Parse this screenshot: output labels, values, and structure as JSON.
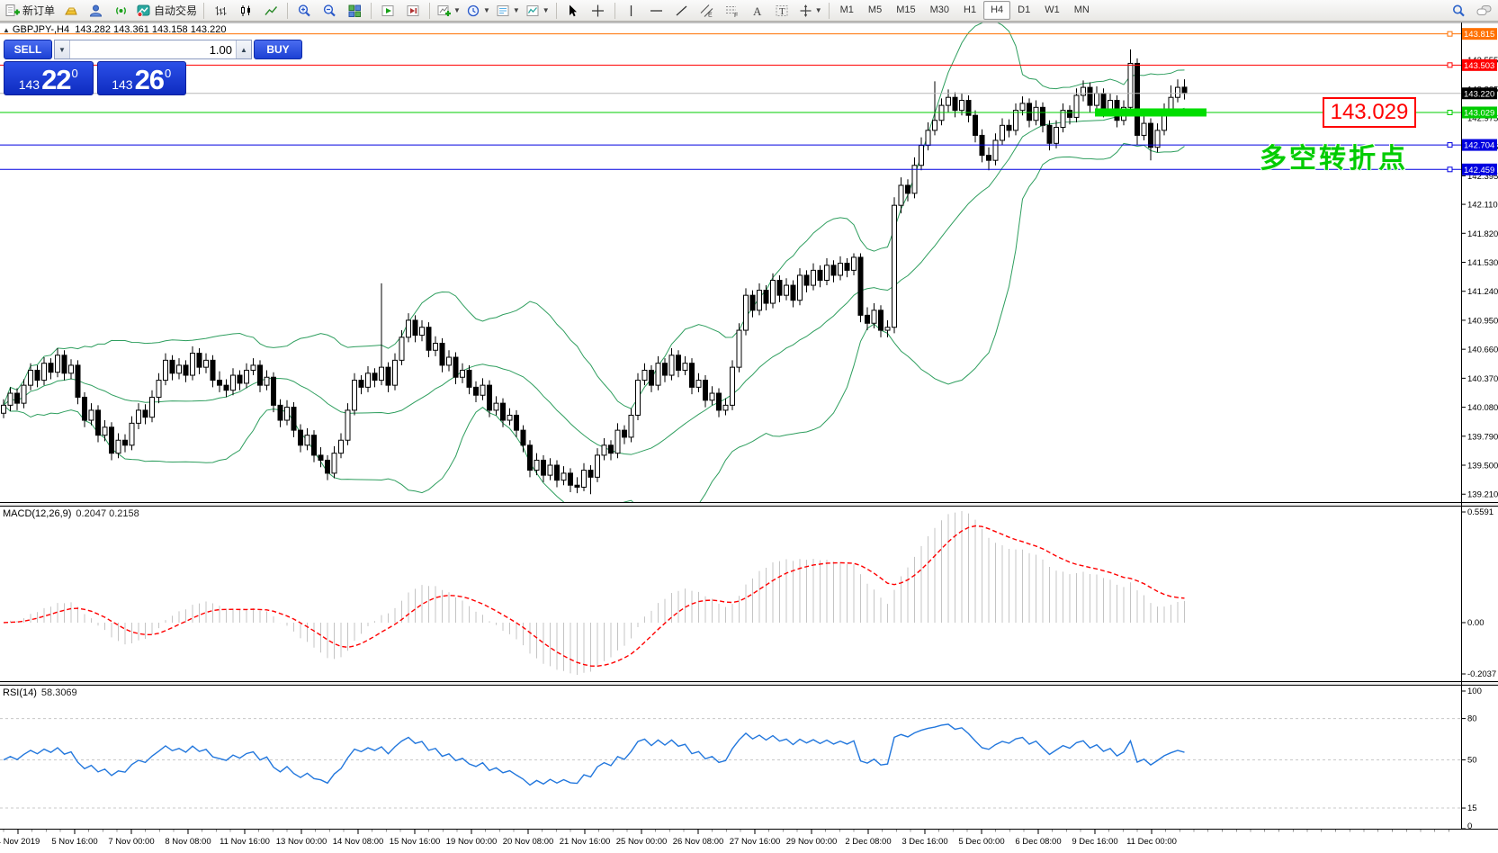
{
  "toolbar": {
    "new_order_label": "新订单",
    "autotrading_label": "自动交易",
    "timeframes": [
      "M1",
      "M5",
      "M15",
      "M30",
      "H1",
      "H4",
      "D1",
      "W1",
      "MN"
    ],
    "active_timeframe": "H4"
  },
  "header": {
    "symbol": "GBPJPY-,H4",
    "ohlc": "143.282 143.361 143.158 143.220"
  },
  "trade_panel": {
    "sell_label": "SELL",
    "buy_label": "BUY",
    "volume": "1.00",
    "sell_price": {
      "prefix": "143",
      "big": "22",
      "sup": "0"
    },
    "buy_price": {
      "prefix": "143",
      "big": "26",
      "sup": "0"
    }
  },
  "annotations": {
    "price_tag": "143.029",
    "pivot_text": "多空转折点",
    "pivot_color": "#00cc00"
  },
  "colors": {
    "bull_candle": "#ffffff",
    "bear_candle": "#000000",
    "candle_border": "#000000",
    "bollinger": "#2e9e5e",
    "macd_histogram": "#c4c4c4",
    "macd_signal": "#ff0000",
    "rsi_line": "#2277dd",
    "bid_line": "#b8b8b8",
    "thick_level": "#00dd00"
  },
  "chart_data": {
    "type": "candlestick",
    "symbol": "GBPJPY",
    "period": "H4",
    "price_axis_ticks": [
      "143.555",
      "143.265",
      "142.975",
      "142.685",
      "142.395",
      "142.110",
      "141.820",
      "141.530",
      "141.240",
      "140.950",
      "140.660",
      "140.370",
      "140.080",
      "139.790",
      "139.500",
      "139.210"
    ],
    "levels": [
      {
        "price": 143.815,
        "label": "143.815",
        "color": "#ff7000"
      },
      {
        "price": 143.503,
        "label": "143.503",
        "color": "#ff0000"
      },
      {
        "price": 143.22,
        "label": "143.220",
        "color": "#b8b8b8",
        "badge": "#000000",
        "is_bid": true
      },
      {
        "price": 143.029,
        "label": "143.029",
        "color": "#00cc00",
        "thick_segment": [
          1217,
          1341
        ]
      },
      {
        "price": 142.704,
        "label": "142.704",
        "color": "#0000e0"
      },
      {
        "price": 142.459,
        "label": "142.459",
        "color": "#0000e0"
      }
    ],
    "time_axis_labels": [
      "4 Nov 2019",
      "5 Nov 16:00",
      "7 Nov 00:00",
      "8 Nov 08:00",
      "11 Nov 16:00",
      "13 Nov 00:00",
      "14 Nov 08:00",
      "15 Nov 16:00",
      "19 Nov 00:00",
      "20 Nov 08:00",
      "21 Nov 16:00",
      "25 Nov 00:00",
      "26 Nov 08:00",
      "27 Nov 16:00",
      "29 Nov 00:00",
      "2 Dec 08:00",
      "3 Dec 16:00",
      "5 Dec 00:00",
      "6 Dec 08:00",
      "9 Dec 16:00",
      "11 Dec 00:00"
    ],
    "indicators": {
      "bollinger": {
        "period": 20,
        "deviation": 2
      },
      "macd": {
        "label": "MACD(12,26,9)",
        "values_text": "0.2047 0.2158",
        "params": [
          12,
          26,
          9
        ],
        "axis": [
          "0.5591",
          "0.00",
          "-0.2037"
        ]
      },
      "rsi": {
        "label": "RSI(14)",
        "value_text": "58.3069",
        "period": 14,
        "axis": [
          "100",
          "80",
          "50",
          "15",
          "0"
        ],
        "levels": [
          80,
          50,
          15
        ]
      }
    },
    "candles": [
      [
        140.02,
        140.16,
        139.97,
        140.1
      ],
      [
        140.1,
        140.28,
        140.04,
        140.22
      ],
      [
        140.22,
        140.27,
        140.05,
        140.12
      ],
      [
        140.12,
        140.36,
        140.07,
        140.3
      ],
      [
        140.3,
        140.52,
        140.25,
        140.45
      ],
      [
        140.45,
        140.5,
        140.28,
        140.35
      ],
      [
        140.35,
        140.58,
        140.3,
        140.52
      ],
      [
        140.52,
        140.57,
        140.36,
        140.43
      ],
      [
        140.43,
        140.67,
        140.38,
        140.6
      ],
      [
        140.6,
        140.65,
        140.35,
        140.42
      ],
      [
        140.42,
        140.56,
        140.36,
        140.5
      ],
      [
        140.5,
        140.55,
        140.11,
        140.18
      ],
      [
        140.18,
        140.23,
        139.88,
        139.95
      ],
      [
        139.95,
        140.12,
        139.9,
        140.05
      ],
      [
        140.05,
        140.1,
        139.73,
        139.8
      ],
      [
        139.8,
        139.95,
        139.74,
        139.88
      ],
      [
        139.88,
        139.93,
        139.55,
        139.62
      ],
      [
        139.62,
        139.82,
        139.57,
        139.75
      ],
      [
        139.75,
        139.81,
        139.63,
        139.7
      ],
      [
        139.7,
        139.99,
        139.65,
        139.92
      ],
      [
        139.92,
        140.12,
        139.86,
        140.05
      ],
      [
        140.05,
        140.11,
        139.91,
        139.98
      ],
      [
        139.98,
        140.25,
        139.93,
        140.18
      ],
      [
        140.18,
        140.42,
        140.12,
        140.35
      ],
      [
        140.35,
        140.62,
        140.3,
        140.55
      ],
      [
        140.55,
        140.6,
        140.35,
        140.42
      ],
      [
        140.42,
        140.57,
        140.36,
        140.5
      ],
      [
        140.5,
        140.55,
        140.33,
        140.4
      ],
      [
        140.4,
        140.69,
        140.35,
        140.62
      ],
      [
        140.62,
        140.67,
        140.41,
        140.48
      ],
      [
        140.48,
        140.62,
        140.42,
        140.55
      ],
      [
        140.55,
        140.6,
        140.28,
        140.35
      ],
      [
        140.35,
        140.44,
        140.23,
        140.3
      ],
      [
        140.3,
        140.36,
        140.18,
        140.25
      ],
      [
        140.25,
        140.47,
        140.2,
        140.4
      ],
      [
        140.4,
        140.45,
        140.25,
        140.32
      ],
      [
        140.32,
        140.52,
        140.27,
        140.45
      ],
      [
        140.45,
        140.57,
        140.4,
        140.5
      ],
      [
        140.5,
        140.55,
        140.23,
        140.3
      ],
      [
        140.3,
        140.45,
        140.25,
        140.38
      ],
      [
        140.38,
        140.43,
        140.03,
        140.1
      ],
      [
        140.1,
        140.16,
        139.88,
        139.95
      ],
      [
        139.95,
        140.15,
        139.9,
        140.08
      ],
      [
        140.08,
        140.13,
        139.78,
        139.85
      ],
      [
        139.85,
        139.91,
        139.63,
        139.7
      ],
      [
        139.7,
        139.87,
        139.65,
        139.8
      ],
      [
        139.8,
        139.85,
        139.53,
        139.6
      ],
      [
        139.6,
        139.68,
        139.48,
        139.55
      ],
      [
        139.55,
        139.6,
        139.35,
        139.42
      ],
      [
        139.42,
        139.69,
        139.37,
        139.62
      ],
      [
        139.62,
        139.82,
        139.57,
        139.75
      ],
      [
        139.75,
        140.12,
        139.7,
        140.05
      ],
      [
        140.05,
        140.42,
        140.0,
        140.35
      ],
      [
        140.35,
        140.4,
        140.21,
        140.28
      ],
      [
        140.28,
        140.49,
        140.23,
        140.42
      ],
      [
        140.42,
        140.47,
        140.28,
        140.35
      ],
      [
        140.35,
        141.32,
        140.3,
        140.48
      ],
      [
        140.48,
        140.53,
        140.23,
        140.3
      ],
      [
        140.3,
        140.62,
        140.25,
        140.55
      ],
      [
        140.55,
        140.85,
        140.5,
        140.78
      ],
      [
        140.78,
        141.02,
        140.73,
        140.95
      ],
      [
        140.95,
        141.0,
        140.73,
        140.8
      ],
      [
        140.8,
        140.95,
        140.74,
        140.88
      ],
      [
        140.88,
        140.93,
        140.58,
        140.65
      ],
      [
        140.65,
        140.79,
        140.59,
        140.72
      ],
      [
        140.72,
        140.77,
        140.43,
        140.5
      ],
      [
        140.5,
        140.65,
        140.44,
        140.58
      ],
      [
        140.58,
        140.63,
        140.31,
        140.38
      ],
      [
        140.38,
        140.52,
        140.32,
        140.45
      ],
      [
        140.45,
        140.5,
        140.21,
        140.28
      ],
      [
        140.28,
        140.34,
        140.13,
        140.2
      ],
      [
        140.2,
        140.37,
        140.15,
        140.3
      ],
      [
        140.3,
        140.35,
        139.98,
        140.05
      ],
      [
        140.05,
        140.19,
        140.0,
        140.12
      ],
      [
        140.12,
        140.17,
        139.88,
        139.95
      ],
      [
        139.95,
        140.07,
        139.9,
        140.0
      ],
      [
        140.0,
        140.05,
        139.78,
        139.85
      ],
      [
        139.85,
        139.9,
        139.63,
        139.7
      ],
      [
        139.7,
        139.75,
        139.38,
        139.45
      ],
      [
        139.45,
        139.62,
        139.4,
        139.55
      ],
      [
        139.55,
        139.6,
        139.33,
        139.4
      ],
      [
        139.4,
        139.57,
        139.35,
        139.5
      ],
      [
        139.5,
        139.55,
        139.28,
        139.35
      ],
      [
        139.35,
        139.49,
        139.3,
        139.42
      ],
      [
        139.42,
        139.47,
        139.23,
        139.3
      ],
      [
        139.3,
        139.38,
        139.22,
        139.28
      ],
      [
        139.28,
        139.52,
        139.24,
        139.45
      ],
      [
        139.45,
        139.5,
        139.21,
        139.38
      ],
      [
        139.38,
        139.67,
        139.33,
        139.6
      ],
      [
        139.6,
        139.77,
        139.55,
        139.7
      ],
      [
        139.7,
        139.75,
        139.55,
        139.62
      ],
      [
        139.62,
        139.92,
        139.57,
        139.85
      ],
      [
        139.85,
        139.9,
        139.71,
        139.78
      ],
      [
        139.78,
        140.07,
        139.73,
        140.0
      ],
      [
        140.0,
        140.42,
        139.95,
        140.35
      ],
      [
        140.35,
        140.52,
        140.3,
        140.45
      ],
      [
        140.45,
        140.5,
        140.23,
        140.3
      ],
      [
        140.3,
        140.59,
        140.25,
        140.52
      ],
      [
        140.52,
        140.57,
        140.33,
        140.4
      ],
      [
        140.4,
        140.67,
        140.35,
        140.6
      ],
      [
        140.6,
        140.65,
        140.38,
        140.45
      ],
      [
        140.45,
        140.59,
        140.4,
        140.52
      ],
      [
        140.52,
        140.57,
        140.21,
        140.28
      ],
      [
        140.28,
        140.42,
        140.23,
        140.35
      ],
      [
        140.35,
        140.4,
        140.08,
        140.15
      ],
      [
        140.15,
        140.29,
        140.1,
        140.22
      ],
      [
        140.22,
        140.27,
        139.98,
        140.05
      ],
      [
        140.05,
        140.17,
        140.0,
        140.1
      ],
      [
        140.1,
        140.55,
        140.05,
        140.48
      ],
      [
        140.48,
        140.92,
        140.43,
        140.85
      ],
      [
        140.85,
        141.27,
        140.8,
        141.2
      ],
      [
        141.2,
        141.25,
        140.98,
        141.05
      ],
      [
        141.05,
        141.32,
        141.0,
        141.25
      ],
      [
        141.25,
        141.3,
        141.05,
        141.12
      ],
      [
        141.12,
        141.42,
        141.07,
        141.35
      ],
      [
        141.35,
        141.4,
        141.13,
        141.2
      ],
      [
        141.2,
        141.37,
        141.15,
        141.3
      ],
      [
        141.3,
        141.35,
        141.08,
        141.15
      ],
      [
        141.15,
        141.47,
        141.1,
        141.4
      ],
      [
        141.4,
        141.45,
        141.23,
        141.3
      ],
      [
        141.3,
        141.52,
        141.25,
        141.45
      ],
      [
        141.45,
        141.5,
        141.28,
        141.35
      ],
      [
        141.35,
        141.57,
        141.3,
        141.5
      ],
      [
        141.5,
        141.55,
        141.33,
        141.4
      ],
      [
        141.4,
        141.59,
        141.35,
        141.52
      ],
      [
        141.52,
        141.57,
        141.38,
        141.45
      ],
      [
        141.45,
        141.62,
        141.4,
        141.58
      ],
      [
        141.58,
        141.62,
        140.93,
        141.0
      ],
      [
        141.0,
        141.08,
        140.85,
        140.92
      ],
      [
        140.92,
        141.12,
        140.87,
        141.05
      ],
      [
        141.05,
        141.1,
        140.78,
        140.85
      ],
      [
        140.85,
        140.95,
        140.78,
        140.88
      ],
      [
        140.88,
        142.18,
        140.82,
        142.1
      ],
      [
        142.1,
        142.38,
        142.02,
        142.3
      ],
      [
        142.3,
        142.36,
        142.14,
        142.22
      ],
      [
        142.22,
        142.58,
        142.17,
        142.5
      ],
      [
        142.5,
        142.78,
        142.45,
        142.7
      ],
      [
        142.7,
        142.93,
        142.65,
        142.85
      ],
      [
        142.85,
        143.34,
        142.8,
        142.95
      ],
      [
        142.95,
        143.17,
        142.9,
        143.1
      ],
      [
        143.1,
        143.26,
        143.03,
        143.18
      ],
      [
        143.18,
        143.23,
        142.98,
        143.05
      ],
      [
        143.05,
        143.22,
        143.0,
        143.15
      ],
      [
        143.15,
        143.2,
        142.93,
        143.0
      ],
      [
        143.0,
        143.05,
        142.73,
        142.8
      ],
      [
        142.8,
        142.86,
        142.53,
        142.6
      ],
      [
        142.6,
        142.68,
        142.45,
        142.55
      ],
      [
        142.55,
        142.82,
        142.5,
        142.75
      ],
      [
        142.75,
        142.97,
        142.7,
        142.9
      ],
      [
        142.9,
        142.96,
        142.78,
        142.85
      ],
      [
        142.85,
        143.12,
        142.8,
        143.05
      ],
      [
        143.05,
        143.19,
        143.0,
        143.12
      ],
      [
        143.12,
        143.17,
        142.88,
        142.95
      ],
      [
        142.95,
        143.15,
        142.9,
        143.08
      ],
      [
        143.08,
        143.13,
        142.83,
        142.9
      ],
      [
        142.9,
        142.95,
        142.65,
        142.72
      ],
      [
        142.72,
        142.95,
        142.67,
        142.88
      ],
      [
        142.88,
        143.12,
        142.83,
        143.05
      ],
      [
        143.05,
        143.1,
        142.91,
        142.98
      ],
      [
        142.98,
        143.27,
        142.93,
        143.2
      ],
      [
        143.2,
        143.35,
        143.14,
        143.28
      ],
      [
        143.28,
        143.33,
        143.03,
        143.1
      ],
      [
        143.1,
        143.29,
        143.05,
        143.22
      ],
      [
        143.22,
        143.27,
        142.98,
        143.05
      ],
      [
        143.05,
        143.22,
        143.0,
        143.15
      ],
      [
        143.15,
        143.2,
        142.88,
        142.95
      ],
      [
        142.95,
        143.15,
        142.9,
        143.08
      ],
      [
        143.08,
        143.66,
        143.03,
        143.52
      ],
      [
        143.52,
        143.57,
        142.7,
        142.8
      ],
      [
        142.8,
        142.99,
        142.75,
        142.92
      ],
      [
        142.92,
        142.97,
        142.55,
        142.68
      ],
      [
        142.68,
        142.92,
        142.63,
        142.85
      ],
      [
        142.85,
        143.12,
        142.8,
        143.05
      ],
      [
        143.05,
        143.3,
        143.0,
        143.18
      ],
      [
        143.18,
        143.36,
        143.13,
        143.28
      ],
      [
        143.282,
        143.361,
        143.158,
        143.22
      ]
    ]
  }
}
